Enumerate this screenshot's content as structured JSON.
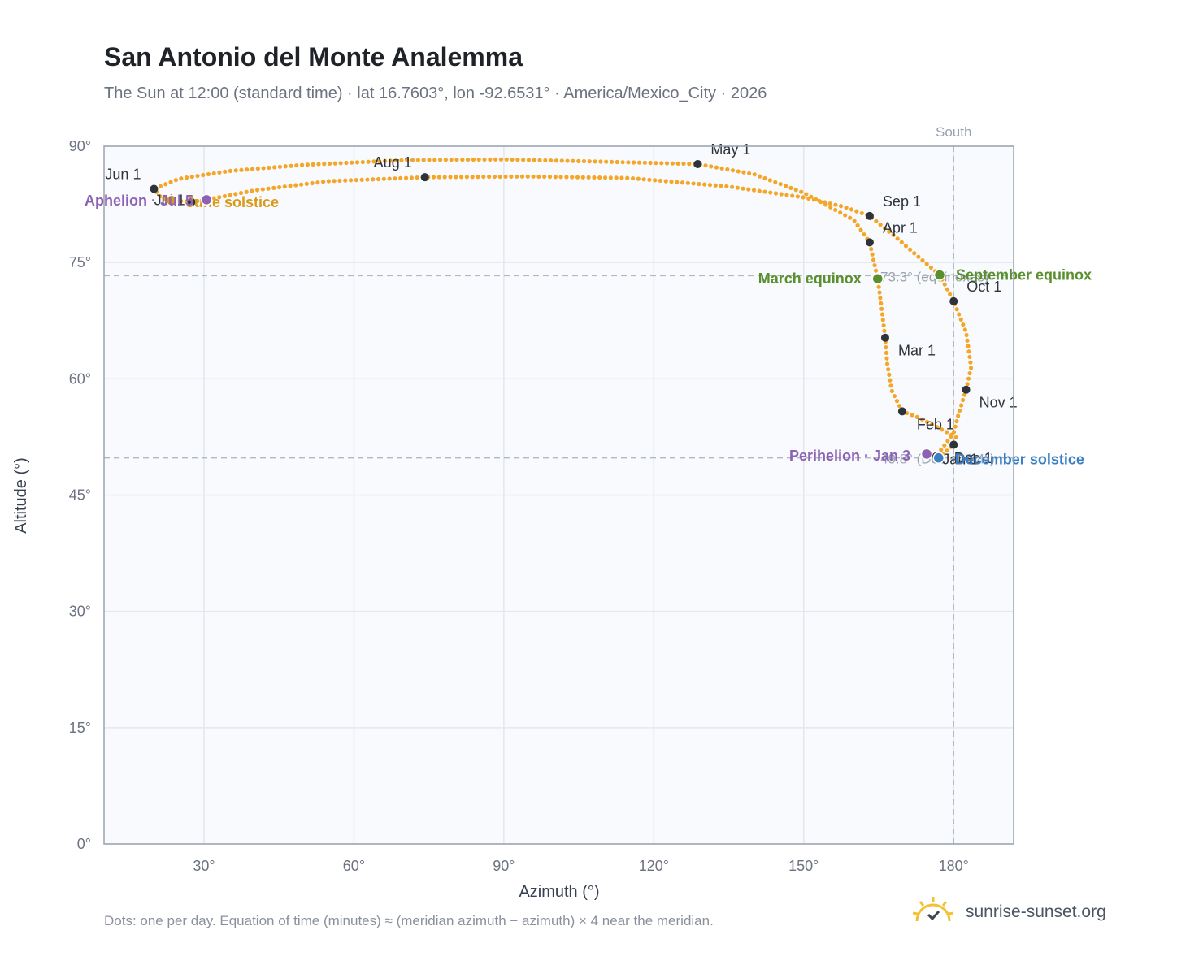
{
  "header": {
    "title": "San Antonio del Monte Analemma",
    "subtitle": "The Sun at 12:00 (standard time) · lat 16.7603°, lon -92.6531° · America/Mexico_City · 2026"
  },
  "footer": {
    "note": "Dots: one per day. Equation of time (minutes) ≈ (meridian azimuth − azimuth) × 4 near the meridian.",
    "brand": "sunrise-sunset.org"
  },
  "icons": {
    "brand_logo": "sun-logo-icon"
  },
  "colors": {
    "curve": "#f4a629",
    "month_marker": "#2d333b",
    "equinox": "#5a8f2e",
    "solstice_december": "#3a7fc4",
    "solstice_june": "#d99a1a",
    "apsis": "#8d62b5",
    "reference": "#b0b8c4",
    "plot_bg": "#f8fafd"
  },
  "chart_data": {
    "type": "scatter",
    "title": "San Antonio del Monte Analemma",
    "xlabel": "Azimuth (°)",
    "ylabel": "Altitude (°)",
    "xlim": [
      10,
      192
    ],
    "ylim": [
      0,
      90
    ],
    "x_ticks": [
      30,
      60,
      90,
      120,
      150,
      180
    ],
    "y_ticks": [
      0,
      15,
      30,
      45,
      60,
      75,
      90
    ],
    "tick_suffix": "°",
    "grid": true,
    "meridian": {
      "azimuth": 180,
      "label": "South"
    },
    "reference_lines": [
      {
        "altitude": 73.3,
        "label": "73.3° (equinoxes)"
      },
      {
        "altitude": 49.8,
        "label": "49.8° (Dec −23.4°)"
      }
    ],
    "month_markers": [
      {
        "label": "Jan 1",
        "azimuth": 180.0,
        "altitude": 51.5
      },
      {
        "label": "Feb 1",
        "azimuth": 169.7,
        "altitude": 55.8
      },
      {
        "label": "Mar 1",
        "azimuth": 166.3,
        "altitude": 65.3
      },
      {
        "label": "Apr 1",
        "azimuth": 163.2,
        "altitude": 77.6
      },
      {
        "label": "May 1",
        "azimuth": 128.8,
        "altitude": 87.7
      },
      {
        "label": "Jun 1",
        "azimuth": 20.0,
        "altitude": 84.5
      },
      {
        "label": "Jul 1",
        "azimuth": 27.5,
        "altitude": 82.8
      },
      {
        "label": "Aug 1",
        "azimuth": 74.2,
        "altitude": 86.0
      },
      {
        "label": "Sep 1",
        "azimuth": 163.2,
        "altitude": 81.0
      },
      {
        "label": "Oct 1",
        "azimuth": 180.0,
        "altitude": 70.0
      },
      {
        "label": "Nov 1",
        "azimuth": 182.5,
        "altitude": 58.6
      },
      {
        "label": "Dec 1",
        "azimuth": 176.5,
        "altitude": 50.0
      }
    ],
    "events": [
      {
        "label": "March equinox",
        "azimuth": 164.8,
        "altitude": 72.9,
        "color": "#5a8f2e"
      },
      {
        "label": "September equinox",
        "azimuth": 177.2,
        "altitude": 73.4,
        "color": "#5a8f2e"
      },
      {
        "label": "December solstice",
        "azimuth": 177.0,
        "altitude": 49.8,
        "color": "#3a7fc4"
      },
      {
        "label": "June solstice",
        "azimuth": 23.5,
        "altitude": 83.0,
        "color": "#d99a1a"
      },
      {
        "label": "Perihelion · Jan 3",
        "azimuth": 174.6,
        "altitude": 50.3,
        "color": "#8d62b5"
      },
      {
        "label": "Aphelion · Jul 5",
        "azimuth": 30.5,
        "altitude": 83.1,
        "color": "#8d62b5"
      }
    ],
    "daily_path_keypoints": [
      [
        177.0,
        49.8
      ],
      [
        180.0,
        51.5
      ],
      [
        180.5,
        52.5
      ],
      [
        177.5,
        53.5
      ],
      [
        173.0,
        55.0
      ],
      [
        169.7,
        55.8
      ],
      [
        167.6,
        58.5
      ],
      [
        166.7,
        62.0
      ],
      [
        166.3,
        65.3
      ],
      [
        165.5,
        69.5
      ],
      [
        164.8,
        72.9
      ],
      [
        163.8,
        75.8
      ],
      [
        163.2,
        77.6
      ],
      [
        160.0,
        80.5
      ],
      [
        150.0,
        84.0
      ],
      [
        140.0,
        86.4
      ],
      [
        128.8,
        87.7
      ],
      [
        110.0,
        88.0
      ],
      [
        90.0,
        88.3
      ],
      [
        70.0,
        88.2
      ],
      [
        50.0,
        87.6
      ],
      [
        35.0,
        86.8
      ],
      [
        25.0,
        85.8
      ],
      [
        20.0,
        84.5
      ],
      [
        21.5,
        83.3
      ],
      [
        23.5,
        83.0
      ],
      [
        27.5,
        82.8
      ],
      [
        30.5,
        83.1
      ],
      [
        40.0,
        84.3
      ],
      [
        55.0,
        85.5
      ],
      [
        74.2,
        86.0
      ],
      [
        95.0,
        86.1
      ],
      [
        115.0,
        85.9
      ],
      [
        135.0,
        84.8
      ],
      [
        150.0,
        83.4
      ],
      [
        158.0,
        82.2
      ],
      [
        163.2,
        81.0
      ],
      [
        168.0,
        78.5
      ],
      [
        173.0,
        75.7
      ],
      [
        177.2,
        73.4
      ],
      [
        180.0,
        70.0
      ],
      [
        182.5,
        66.0
      ],
      [
        183.5,
        61.5
      ],
      [
        182.5,
        58.6
      ],
      [
        181.0,
        55.5
      ],
      [
        180.0,
        53.0
      ],
      [
        176.5,
        50.0
      ],
      [
        177.0,
        49.8
      ]
    ]
  }
}
